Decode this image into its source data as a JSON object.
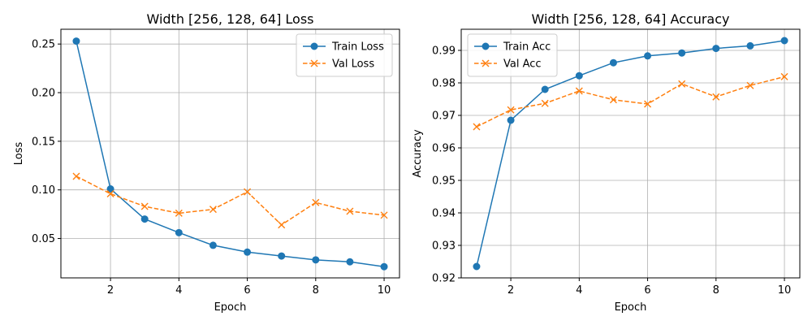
{
  "chart_data": [
    {
      "type": "line",
      "title": "Width [256, 128, 64] Loss",
      "xlabel": "Epoch",
      "ylabel": "Loss",
      "x": [
        1,
        2,
        3,
        4,
        5,
        6,
        7,
        8,
        9,
        10
      ],
      "xticks": [
        2,
        4,
        6,
        8,
        10
      ],
      "xlim": [
        0.55,
        10.45
      ],
      "ylim": [
        0.0095,
        0.2652
      ],
      "yticks": [
        0.05,
        0.1,
        0.15,
        0.2,
        0.25
      ],
      "ytick_labels": [
        "0.05",
        "0.10",
        "0.15",
        "0.20",
        "0.25"
      ],
      "grid": true,
      "legend_position": "upper right",
      "series": [
        {
          "name": "Train Loss",
          "values": [
            0.253,
            0.101,
            0.07,
            0.056,
            0.043,
            0.036,
            0.032,
            0.028,
            0.026,
            0.021
          ],
          "color": "#1f77b4",
          "linestyle": "solid",
          "marker": "circle"
        },
        {
          "name": "Val Loss",
          "values": [
            0.114,
            0.096,
            0.083,
            0.076,
            0.08,
            0.098,
            0.064,
            0.087,
            0.078,
            0.074
          ],
          "color": "#ff7f0e",
          "linestyle": "dashed",
          "marker": "x"
        }
      ]
    },
    {
      "type": "line",
      "title": "Width [256, 128, 64] Accuracy",
      "xlabel": "Epoch",
      "ylabel": "Accuracy",
      "x": [
        1,
        2,
        3,
        4,
        5,
        6,
        7,
        8,
        9,
        10
      ],
      "xticks": [
        2,
        4,
        6,
        8,
        10
      ],
      "xlim": [
        0.55,
        10.45
      ],
      "ylim": [
        0.92,
        0.9965
      ],
      "yticks": [
        0.92,
        0.93,
        0.94,
        0.95,
        0.96,
        0.97,
        0.98,
        0.99
      ],
      "ytick_labels": [
        "0.92",
        "0.93",
        "0.94",
        "0.95",
        "0.96",
        "0.97",
        "0.98",
        "0.99"
      ],
      "grid": true,
      "legend_position": "upper left",
      "series": [
        {
          "name": "Train Acc",
          "values": [
            0.9235,
            0.9685,
            0.978,
            0.9822,
            0.9862,
            0.9883,
            0.9892,
            0.9906,
            0.9914,
            0.993
          ],
          "color": "#1f77b4",
          "linestyle": "solid",
          "marker": "circle"
        },
        {
          "name": "Val Acc",
          "values": [
            0.9665,
            0.9717,
            0.9737,
            0.9775,
            0.9748,
            0.9735,
            0.9797,
            0.9757,
            0.9792,
            0.9819
          ],
          "color": "#ff7f0e",
          "linestyle": "dashed",
          "marker": "x"
        }
      ]
    }
  ]
}
